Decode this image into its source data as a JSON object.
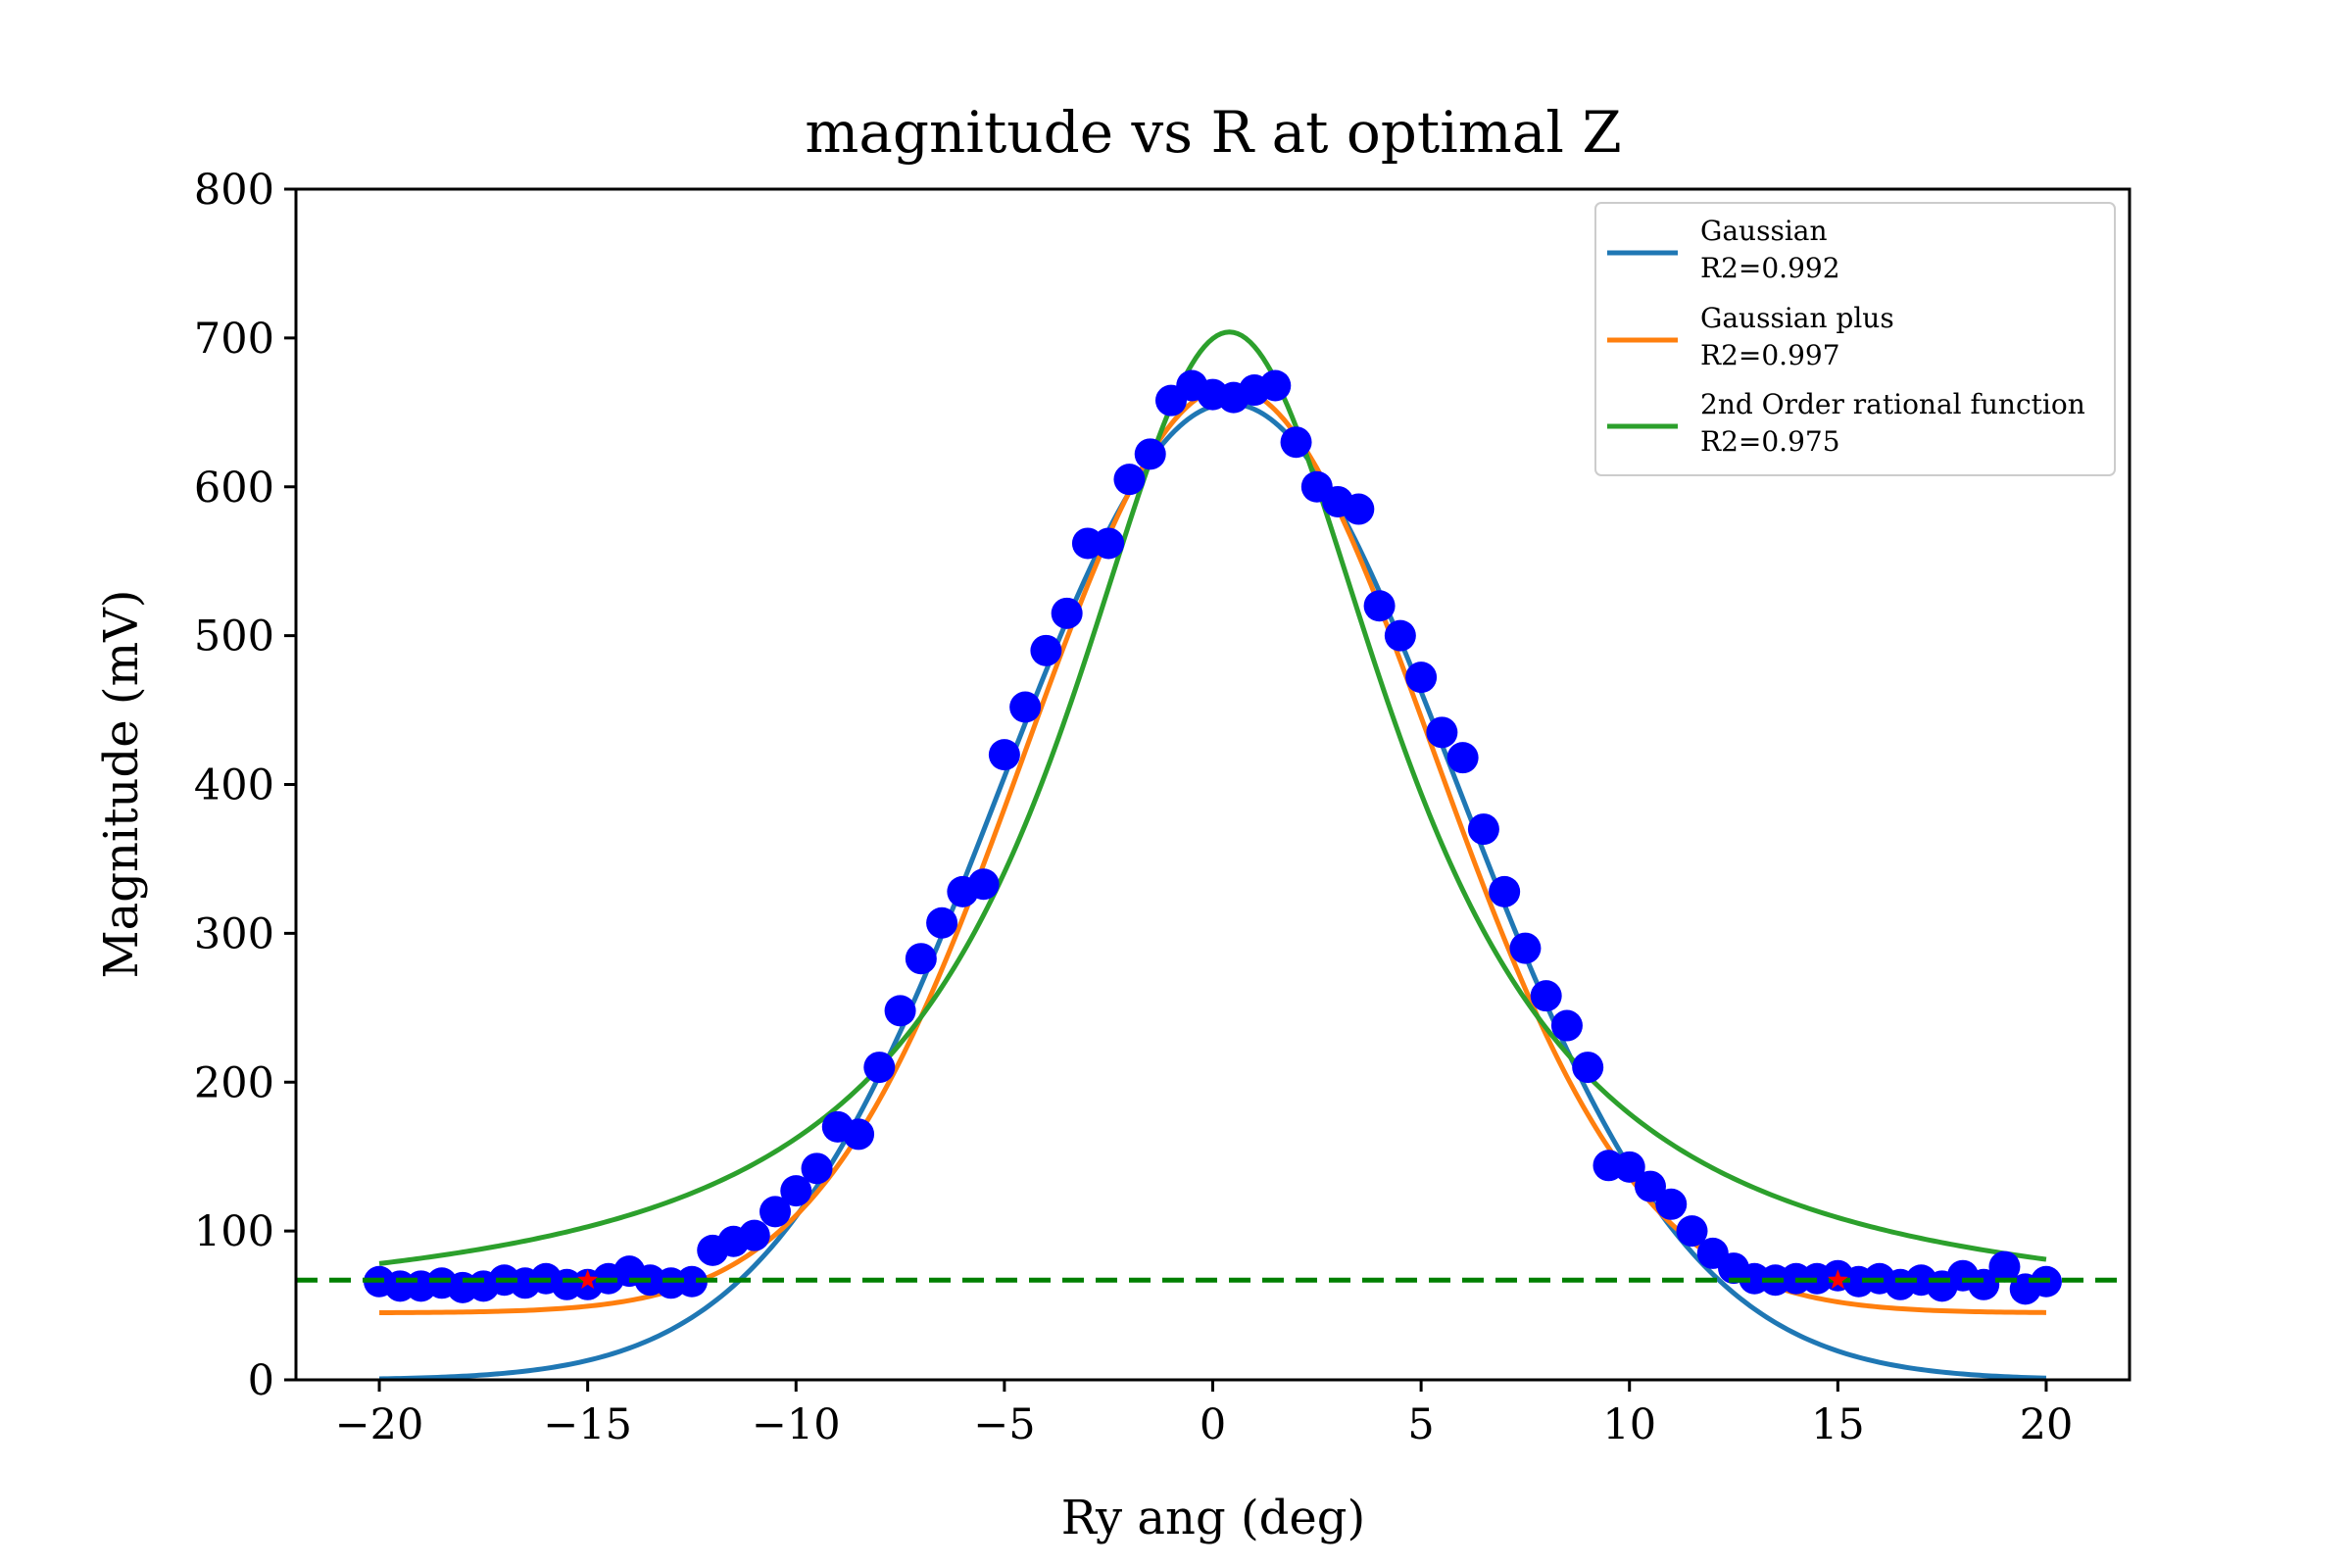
{
  "chart_data": {
    "type": "scatter",
    "title": "magnitude vs R at optimal Z",
    "xlabel": "Ry ang (deg)",
    "ylabel": "Magnitude (mV)",
    "xlim": [
      -22,
      22
    ],
    "ylim": [
      0,
      800
    ],
    "xticks": [
      -20,
      -15,
      -10,
      -5,
      0,
      5,
      10,
      15,
      20
    ],
    "xtick_labels": [
      "−20",
      "−15",
      "−10",
      "−5",
      "0",
      "5",
      "10",
      "15",
      "20"
    ],
    "yticks": [
      0,
      100,
      200,
      300,
      400,
      500,
      600,
      700,
      800
    ],
    "ytick_labels": [
      "0",
      "100",
      "200",
      "300",
      "400",
      "500",
      "600",
      "700",
      "800"
    ],
    "grid": false,
    "legend_position": "top-right",
    "scatter": {
      "color": "#0000ff",
      "x": [
        -20,
        -19.5,
        -19,
        -18.5,
        -18,
        -17.5,
        -17,
        -16.5,
        -16,
        -15.5,
        -15,
        -14.5,
        -14,
        -13.5,
        -13,
        -12.5,
        -12,
        -11.5,
        -11,
        -10.5,
        -10,
        -9.5,
        -9,
        -8.5,
        -8,
        -7.5,
        -7,
        -6.5,
        -6,
        -5.5,
        -5,
        -4.5,
        -4,
        -3.5,
        -3,
        -2.5,
        -2,
        -1.5,
        -1,
        -0.5,
        0,
        0.5,
        1,
        1.5,
        2,
        2.5,
        3,
        3.5,
        4,
        4.5,
        5,
        5.5,
        6,
        6.5,
        7,
        7.5,
        8,
        8.5,
        9,
        9.5,
        10,
        10.5,
        11,
        11.5,
        12,
        12.5,
        13,
        13.5,
        14,
        14.5,
        15,
        15.5,
        16,
        16.5,
        17,
        17.5,
        18,
        18.5,
        19,
        19.5,
        20
      ],
      "y": [
        66,
        63,
        63,
        65,
        62,
        63,
        67,
        65,
        68,
        64,
        64,
        68,
        73,
        67,
        65,
        66,
        87,
        93,
        97,
        113,
        127,
        142,
        170,
        165,
        210,
        248,
        283,
        307,
        328,
        333,
        420,
        452,
        490,
        515,
        562,
        562,
        605,
        622,
        658,
        668,
        662,
        660,
        665,
        668,
        630,
        600,
        590,
        585,
        520,
        500,
        472,
        435,
        418,
        370,
        328,
        290,
        258,
        238,
        210,
        144,
        143,
        130,
        118,
        100,
        85,
        75,
        68,
        67,
        68,
        68,
        70,
        66,
        68,
        64,
        67,
        63,
        70,
        64,
        76,
        61,
        66
      ]
    },
    "threshold": {
      "y": 67,
      "color": "#008000",
      "style": "dashed"
    },
    "stars": {
      "x": [
        -15,
        15
      ],
      "y": [
        67,
        67
      ],
      "color": "#ff0000"
    },
    "series": [
      {
        "name": "Gaussian",
        "r2": "R2=0.992",
        "color": "#1f77b4",
        "model": "gaussian",
        "params": {
          "A": 656,
          "mu": 0.4,
          "sigma": 5.5,
          "c": 0
        }
      },
      {
        "name": "Gaussian plus",
        "r2": "R2=0.997",
        "color": "#ff7f0e",
        "model": "gaussian",
        "params": {
          "A": 622,
          "mu": 0.4,
          "sigma": 4.9,
          "c": 45
        }
      },
      {
        "name": "2nd Order rational function",
        "r2": "R2=0.975",
        "color": "#2ca02c",
        "model": "lorentzian",
        "params": {
          "A": 662,
          "mu": 0.4,
          "gamma": 4.9,
          "c": 42
        }
      }
    ]
  }
}
